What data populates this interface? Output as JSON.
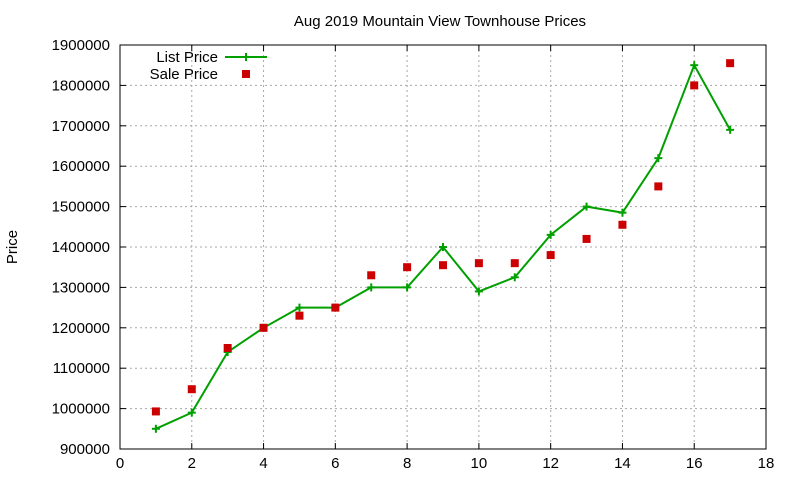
{
  "chart_data": {
    "type": "line",
    "title": "Aug 2019 Mountain View Townhouse Prices",
    "xlabel": "",
    "ylabel": "Price",
    "xlim": [
      0,
      18
    ],
    "ylim": [
      900000,
      1900000
    ],
    "x_ticks": [
      0,
      2,
      4,
      6,
      8,
      10,
      12,
      14,
      16,
      18
    ],
    "y_ticks": [
      900000,
      1000000,
      1100000,
      1200000,
      1300000,
      1400000,
      1500000,
      1600000,
      1700000,
      1800000,
      1900000
    ],
    "grid": true,
    "legend_position": "top-left",
    "series": [
      {
        "name": "List Price",
        "style": "line-with-plus-markers",
        "color": "#00a000",
        "x": [
          1,
          2,
          3,
          4,
          5,
          6,
          7,
          8,
          9,
          10,
          11,
          12,
          13,
          14,
          15,
          16,
          17
        ],
        "values": [
          950000,
          990000,
          1140000,
          1200000,
          1250000,
          1250000,
          1300000,
          1300000,
          1400000,
          1290000,
          1325000,
          1430000,
          1500000,
          1485000,
          1620000,
          1850000,
          1690000
        ]
      },
      {
        "name": "Sale Price",
        "style": "square-markers",
        "color": "#cc0000",
        "x": [
          1,
          2,
          3,
          4,
          5,
          6,
          7,
          8,
          9,
          10,
          11,
          12,
          13,
          14,
          15,
          16,
          17
        ],
        "values": [
          993000,
          1048000,
          1150000,
          1200000,
          1230000,
          1250000,
          1330000,
          1350000,
          1355000,
          1360000,
          1360000,
          1380000,
          1420000,
          1455000,
          1550000,
          1800000,
          1855000
        ]
      }
    ]
  }
}
